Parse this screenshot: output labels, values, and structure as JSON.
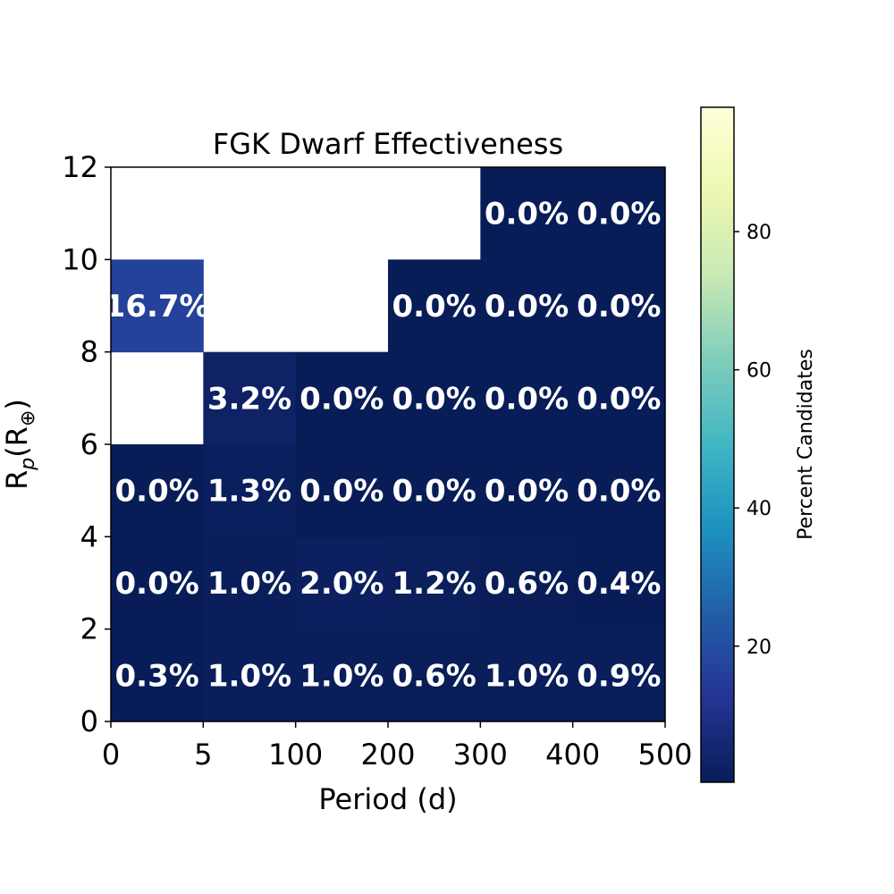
{
  "chart_data": {
    "type": "heatmap",
    "title": "FGK Dwarf Effectiveness",
    "xlabel": "Period (d)",
    "ylabel": "R",
    "ylabel_sub": "p",
    "ylabel_paren": "(R",
    "ylabel_symbol": "⊕",
    "ylabel_close": ")",
    "x_edges": [
      "0",
      "5",
      "100",
      "200",
      "300",
      "400",
      "500"
    ],
    "y_edges": [
      "0",
      "2",
      "4",
      "6",
      "8",
      "10",
      "12"
    ],
    "colorbar": {
      "label": "Percent Candidates",
      "ticks": [
        20,
        40,
        60,
        80
      ],
      "range": [
        0,
        100
      ],
      "colormap": "YlGnBu",
      "vmin": 0.3,
      "vmax": 98
    },
    "cells_by_row_bottom_to_top": [
      [
        0.3,
        1.0,
        1.0,
        0.6,
        1.0,
        0.9
      ],
      [
        0.0,
        1.0,
        2.0,
        1.2,
        0.6,
        0.4
      ],
      [
        0.0,
        1.3,
        0.0,
        0.0,
        0.0,
        0.0
      ],
      [
        null,
        3.2,
        0.0,
        0.0,
        0.0,
        0.0
      ],
      [
        16.7,
        null,
        null,
        0.0,
        0.0,
        0.0
      ],
      [
        null,
        null,
        null,
        null,
        0.0,
        0.0
      ]
    ],
    "cell_labels_by_row_bottom_to_top": [
      [
        "0.3%",
        "1.0%",
        "1.0%",
        "0.6%",
        "1.0%",
        "0.9%"
      ],
      [
        "0.0%",
        "1.0%",
        "2.0%",
        "1.2%",
        "0.6%",
        "0.4%"
      ],
      [
        "0.0%",
        "1.3%",
        "0.0%",
        "0.0%",
        "0.0%",
        "0.0%"
      ],
      [
        "",
        "3.2%",
        "0.0%",
        "0.0%",
        "0.0%",
        "0.0%"
      ],
      [
        "16.7%",
        "",
        "",
        "0.0%",
        "0.0%",
        "0.0%"
      ],
      [
        "",
        "",
        "",
        "",
        "0.0%",
        "0.0%"
      ]
    ]
  }
}
